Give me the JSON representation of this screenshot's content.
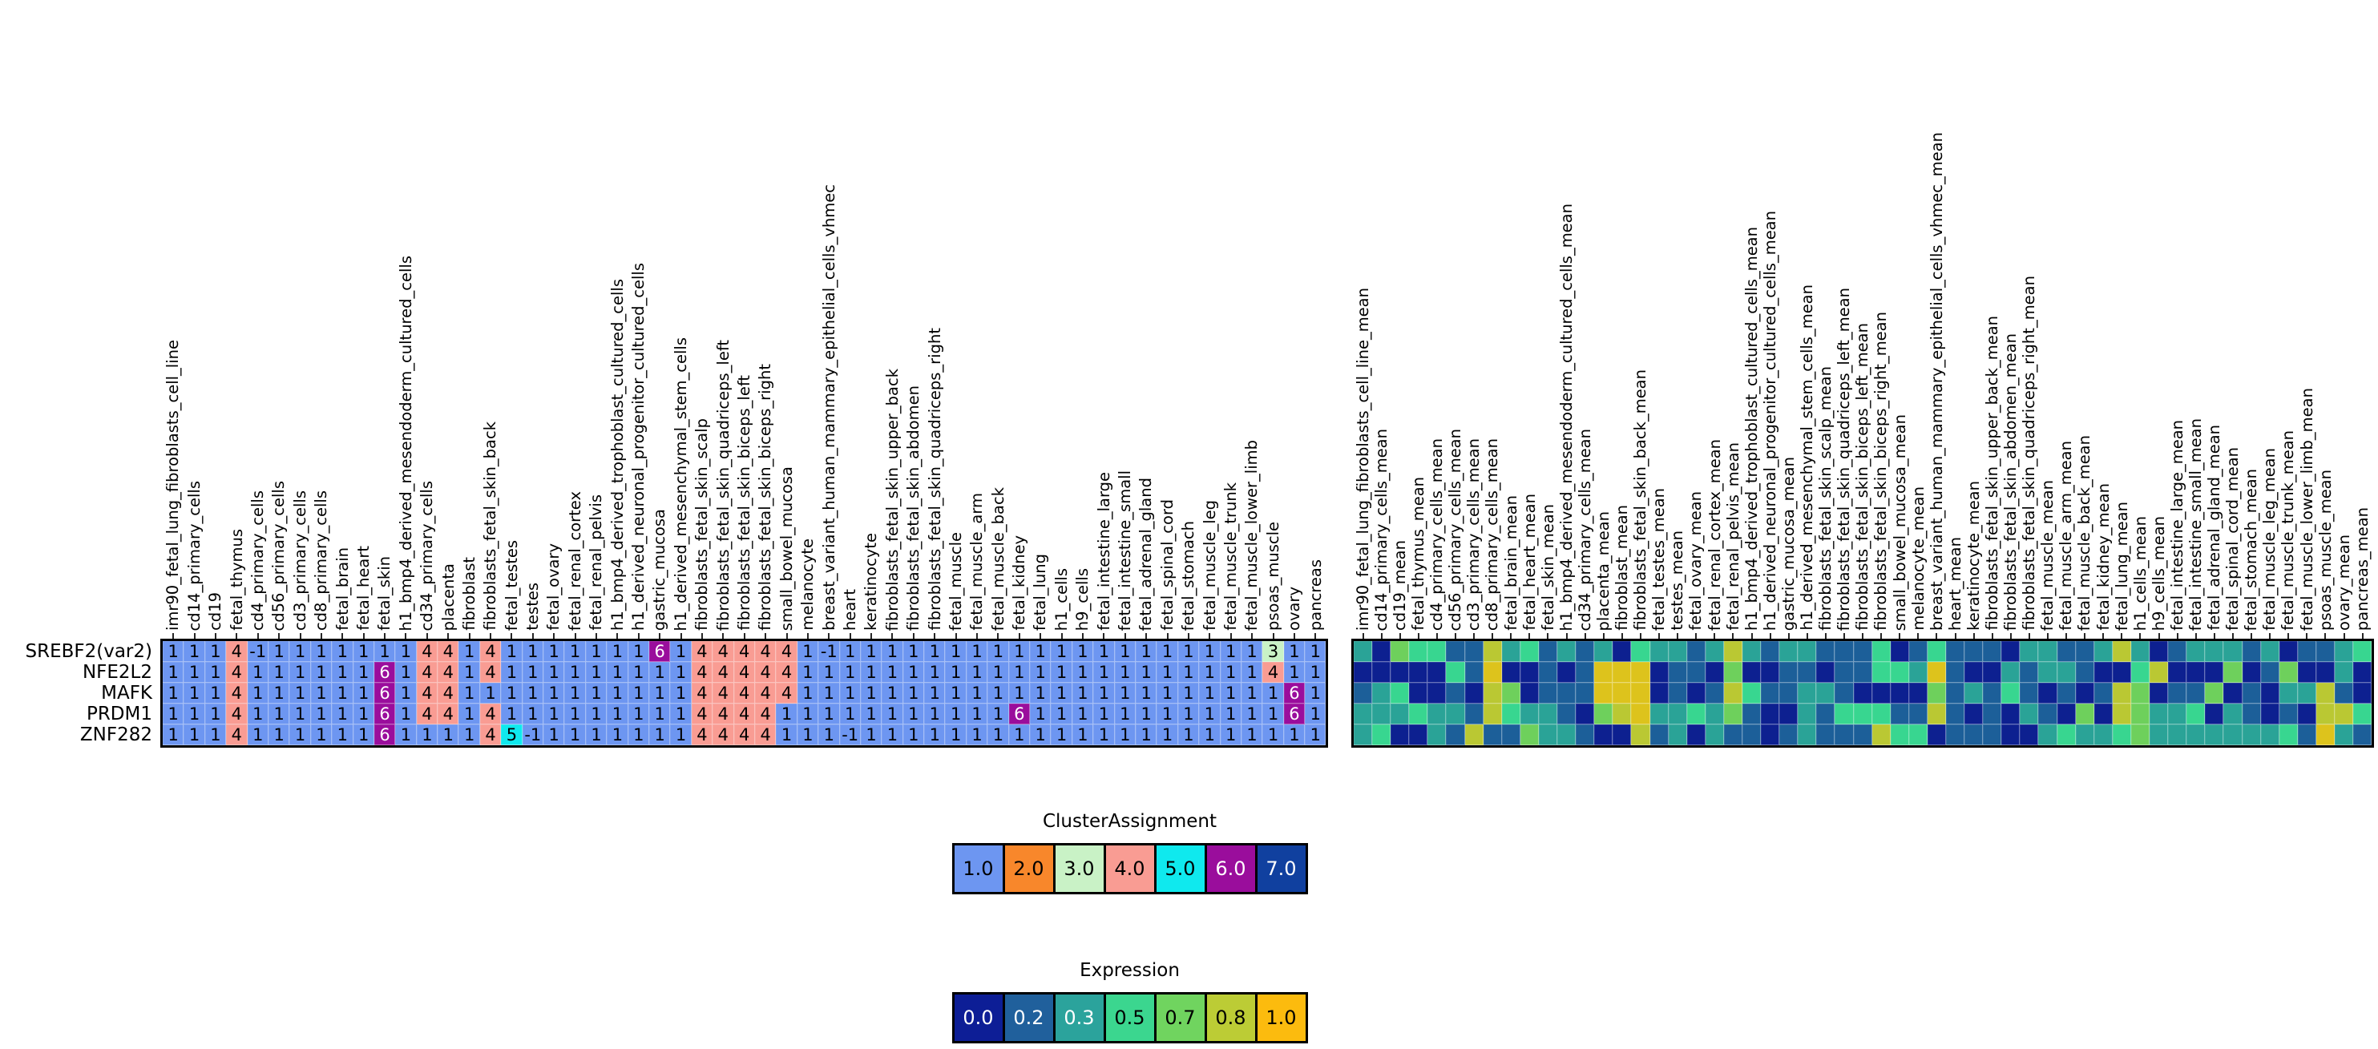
{
  "figure_title": "",
  "rows": [
    "SREBF2(var2)",
    "NFE2L2",
    "MAFK",
    "PRDM1",
    "ZNF282"
  ],
  "cluster_palette": {
    "-1": "#6d96f1",
    "1": "#6d96f1",
    "2": "#f8872b",
    "3": "#c9f2c6",
    "4": "#f99c93",
    "5": "#0fe9ee",
    "6": "#9a0d9c",
    "7": "#10409f"
  },
  "cluster_white_text_values": [
    6,
    7
  ],
  "expression_palette": {
    "0": "#0d2090",
    "0.2": "#1c5f99",
    "0.3": "#2aa397",
    "0.5": "#38d690",
    "0.7": "#6ed05c",
    "0.8": "#bac833",
    "1": "#ddc31c"
  },
  "chart_data": [
    {
      "type": "heatmap",
      "name": "ClusterAssignment",
      "show_values": true,
      "rows": [
        "SREBF2(var2)",
        "NFE2L2",
        "MAFK",
        "PRDM1",
        "ZNF282"
      ],
      "columns": [
        "imr90_fetal_lung_fibroblasts_cell_line",
        "cd14_primary_cells",
        "cd19",
        "fetal_thymus",
        "cd4_primary_cells",
        "cd56_primary_cells",
        "cd3_primary_cells",
        "cd8_primary_cells",
        "fetal_brain",
        "fetal_heart",
        "fetal_skin",
        "h1_bmp4_derived_mesendoderm_cultured_cells",
        "cd34_primary_cells",
        "placenta",
        "fibroblast",
        "fibroblasts_fetal_skin_back",
        "fetal_testes",
        "testes",
        "fetal_ovary",
        "fetal_renal_cortex",
        "fetal_renal_pelvis",
        "h1_bmp4_derived_trophoblast_cultured_cells",
        "h1_derived_neuronal_progenitor_cultured_cells",
        "gastric_mucosa",
        "h1_derived_mesenchymal_stem_cells",
        "fibroblasts_fetal_skin_scalp",
        "fibroblasts_fetal_skin_quadriceps_left",
        "fibroblasts_fetal_skin_biceps_left",
        "fibroblasts_fetal_skin_biceps_right",
        "small_bowel_mucosa",
        "melanocyte",
        "breast_variant_human_mammary_epithelial_cells_vhmec",
        "heart",
        "keratinocyte",
        "fibroblasts_fetal_skin_upper_back",
        "fibroblasts_fetal_skin_abdomen",
        "fibroblasts_fetal_skin_quadriceps_right",
        "fetal_muscle",
        "fetal_muscle_arm",
        "fetal_muscle_back",
        "fetal_kidney",
        "fetal_lung",
        "h1_cells",
        "h9_cells",
        "fetal_intestine_large",
        "fetal_intestine_small",
        "fetal_adrenal_gland",
        "fetal_spinal_cord",
        "fetal_stomach",
        "fetal_muscle_leg",
        "fetal_muscle_trunk",
        "fetal_muscle_lower_limb",
        "psoas_muscle",
        "ovary",
        "pancreas"
      ],
      "values": [
        [
          1,
          1,
          1,
          4,
          -1,
          1,
          1,
          1,
          1,
          1,
          1,
          1,
          4,
          4,
          1,
          4,
          1,
          1,
          1,
          1,
          1,
          1,
          1,
          6,
          1,
          4,
          4,
          4,
          4,
          4,
          1,
          -1,
          1,
          1,
          1,
          1,
          1,
          1,
          1,
          1,
          1,
          1,
          1,
          1,
          1,
          1,
          1,
          1,
          1,
          1,
          1,
          1,
          3,
          1,
          1
        ],
        [
          1,
          1,
          1,
          4,
          1,
          1,
          1,
          1,
          1,
          1,
          6,
          1,
          4,
          4,
          1,
          4,
          1,
          1,
          1,
          1,
          1,
          1,
          1,
          1,
          1,
          4,
          4,
          4,
          4,
          4,
          1,
          1,
          1,
          1,
          1,
          1,
          1,
          1,
          1,
          1,
          1,
          1,
          1,
          1,
          1,
          1,
          1,
          1,
          1,
          1,
          1,
          1,
          4,
          1,
          1
        ],
        [
          1,
          1,
          1,
          4,
          1,
          1,
          1,
          1,
          1,
          1,
          6,
          1,
          4,
          4,
          1,
          1,
          1,
          1,
          1,
          1,
          1,
          1,
          1,
          1,
          1,
          4,
          4,
          4,
          4,
          4,
          1,
          1,
          1,
          1,
          1,
          1,
          1,
          1,
          1,
          1,
          1,
          1,
          1,
          1,
          1,
          1,
          1,
          1,
          1,
          1,
          1,
          1,
          1,
          6,
          1
        ],
        [
          1,
          1,
          1,
          4,
          1,
          1,
          1,
          1,
          1,
          1,
          6,
          1,
          4,
          4,
          1,
          4,
          1,
          1,
          1,
          1,
          1,
          1,
          1,
          1,
          1,
          4,
          4,
          4,
          4,
          1,
          1,
          1,
          1,
          1,
          1,
          1,
          1,
          1,
          1,
          1,
          6,
          1,
          1,
          1,
          1,
          1,
          1,
          1,
          1,
          1,
          1,
          1,
          1,
          6,
          1
        ],
        [
          1,
          1,
          1,
          4,
          1,
          1,
          1,
          1,
          1,
          1,
          6,
          1,
          1,
          1,
          1,
          4,
          5,
          -1,
          1,
          1,
          1,
          1,
          1,
          1,
          1,
          4,
          4,
          4,
          4,
          1,
          1,
          1,
          -1,
          1,
          1,
          1,
          1,
          1,
          1,
          1,
          1,
          1,
          1,
          1,
          1,
          1,
          1,
          1,
          1,
          1,
          1,
          1,
          1,
          1,
          1
        ]
      ]
    },
    {
      "type": "heatmap",
      "name": "Expression",
      "show_values": false,
      "rows": [
        "SREBF2(var2)",
        "NFE2L2",
        "MAFK",
        "PRDM1",
        "ZNF282"
      ],
      "columns": [
        "imr90_fetal_lung_fibroblasts_cell_line_mean",
        "cd14_primary_cells_mean",
        "cd19_mean",
        "fetal_thymus_mean",
        "cd4_primary_cells_mean",
        "cd56_primary_cells_mean",
        "cd3_primary_cells_mean",
        "cd8_primary_cells_mean",
        "fetal_brain_mean",
        "fetal_heart_mean",
        "fetal_skin_mean",
        "h1_bmp4_derived_mesendoderm_cultured_cells_mean",
        "cd34_primary_cells_mean",
        "placenta_mean",
        "fibroblast_mean",
        "fibroblasts_fetal_skin_back_mean",
        "fetal_testes_mean",
        "testes_mean",
        "fetal_ovary_mean",
        "fetal_renal_cortex_mean",
        "fetal_renal_pelvis_mean",
        "h1_bmp4_derived_trophoblast_cultured_cells_mean",
        "h1_derived_neuronal_progenitor_cultured_cells_mean",
        "gastric_mucosa_mean",
        "h1_derived_mesenchymal_stem_cells_mean",
        "fibroblasts_fetal_skin_scalp_mean",
        "fibroblasts_fetal_skin_quadriceps_left_mean",
        "fibroblasts_fetal_skin_biceps_left_mean",
        "fibroblasts_fetal_skin_biceps_right_mean",
        "small_bowel_mucosa_mean",
        "melanocyte_mean",
        "breast_variant_human_mammary_epithelial_cells_vhmec_mean",
        "heart_mean",
        "keratinocyte_mean",
        "fibroblasts_fetal_skin_upper_back_mean",
        "fibroblasts_fetal_skin_abdomen_mean",
        "fibroblasts_fetal_skin_quadriceps_right_mean",
        "fetal_muscle_mean",
        "fetal_muscle_arm_mean",
        "fetal_muscle_back_mean",
        "fetal_kidney_mean",
        "fetal_lung_mean",
        "h1_cells_mean",
        "h9_cells_mean",
        "fetal_intestine_large_mean",
        "fetal_intestine_small_mean",
        "fetal_adrenal_gland_mean",
        "fetal_spinal_cord_mean",
        "fetal_stomach_mean",
        "fetal_muscle_leg_mean",
        "fetal_muscle_trunk_mean",
        "fetal_muscle_lower_limb_mean",
        "psoas_muscle_mean",
        "ovary_mean",
        "pancreas_mean"
      ],
      "values": [
        [
          0.3,
          0,
          0.7,
          0.5,
          0.5,
          0.2,
          0.2,
          0.8,
          0.3,
          0.5,
          0.2,
          0.3,
          0.2,
          0.3,
          0,
          0.5,
          0.3,
          0.3,
          0.2,
          0.3,
          0.8,
          0.3,
          0.2,
          0.3,
          0.3,
          0.2,
          0.2,
          0.2,
          0.5,
          0,
          0.2,
          0.5,
          0.2,
          0.2,
          0.2,
          0,
          0.3,
          0.3,
          0.2,
          0.2,
          0.3,
          0.8,
          0.3,
          0,
          0.2,
          0.3,
          0.3,
          0.3,
          0.2,
          0.3,
          0,
          0.2,
          0.2,
          0.3,
          0.5
        ],
        [
          0,
          0,
          0,
          0,
          0,
          0.5,
          0.2,
          1,
          0,
          0,
          0.2,
          0,
          0.2,
          1,
          1,
          1,
          0,
          0.2,
          0.2,
          0,
          0.7,
          0,
          0,
          0.2,
          0.2,
          0,
          0.2,
          0.2,
          0.5,
          0.5,
          0.3,
          1,
          0.2,
          0,
          0,
          0.3,
          0.2,
          0.3,
          0.3,
          0.2,
          0,
          0,
          0.5,
          0.8,
          0,
          0,
          0,
          0.7,
          0,
          0.2,
          0.7,
          0,
          0,
          0.3,
          0
        ],
        [
          0.2,
          0.3,
          0.5,
          0,
          0,
          0.2,
          0,
          0.8,
          0.7,
          0,
          0.2,
          0.2,
          0.2,
          1,
          1,
          1,
          0,
          0.2,
          0,
          0.2,
          0.8,
          0.5,
          0.2,
          0.2,
          0.3,
          0.3,
          0.2,
          0,
          0,
          0,
          0,
          0.7,
          0.2,
          0.3,
          0.2,
          0.5,
          0.2,
          0,
          0.2,
          0,
          0.2,
          0.8,
          0.7,
          0,
          0.2,
          0.2,
          0.7,
          0,
          0.2,
          0,
          0.3,
          0.3,
          0.8,
          0.2,
          0
        ],
        [
          0.3,
          0.3,
          0.3,
          0.5,
          0.3,
          0.3,
          0.2,
          0.8,
          0.5,
          0.3,
          0.3,
          0.2,
          0,
          0.7,
          0.8,
          1,
          0.3,
          0.3,
          0.5,
          0.3,
          0.7,
          0.2,
          0,
          0,
          0.3,
          0.2,
          0.5,
          0.5,
          0.5,
          0.2,
          0.2,
          0.8,
          0.2,
          0,
          0.2,
          0,
          0.3,
          0.2,
          0,
          0.7,
          0,
          0.8,
          0.7,
          0.3,
          0.3,
          0.5,
          0,
          0.3,
          0.2,
          0,
          0.2,
          0,
          0.8,
          0.8,
          0.5
        ],
        [
          0.3,
          0.5,
          0,
          0,
          0.3,
          0.2,
          0.8,
          0.2,
          0.2,
          0.7,
          0.3,
          0.3,
          0.2,
          0,
          0,
          0.8,
          0.2,
          0.3,
          0,
          0.3,
          0.2,
          0.2,
          0,
          0.2,
          0.3,
          0.2,
          0.2,
          0.2,
          0.8,
          0.5,
          0.5,
          0,
          0.2,
          0.2,
          0.2,
          0,
          0,
          0.3,
          0.5,
          0.3,
          0.3,
          0.5,
          0.7,
          0.3,
          0.3,
          0.3,
          0.3,
          0.3,
          0.3,
          0.3,
          0.5,
          0.2,
          1,
          0.3,
          0.2
        ]
      ]
    }
  ],
  "legends": [
    {
      "title": "ClusterAssignment",
      "entries": [
        {
          "label": "1.0",
          "color": "#6d96f1",
          "text_color": "#000000"
        },
        {
          "label": "2.0",
          "color": "#f8872b",
          "text_color": "#000000"
        },
        {
          "label": "3.0",
          "color": "#c9f2c6",
          "text_color": "#000000"
        },
        {
          "label": "4.0",
          "color": "#f99c93",
          "text_color": "#000000"
        },
        {
          "label": "5.0",
          "color": "#0fe9ee",
          "text_color": "#000000"
        },
        {
          "label": "6.0",
          "color": "#9a0d9c",
          "text_color": "#ffffff"
        },
        {
          "label": "7.0",
          "color": "#10409f",
          "text_color": "#ffffff"
        }
      ]
    },
    {
      "title": "Expression",
      "entries": [
        {
          "label": "0.0",
          "color": "#0d1e96",
          "text_color": "#ffffff"
        },
        {
          "label": "0.2",
          "color": "#20609c",
          "text_color": "#ffffff"
        },
        {
          "label": "0.3",
          "color": "#2ba39c",
          "text_color": "#ffffff"
        },
        {
          "label": "0.5",
          "color": "#3bd68f",
          "text_color": "#000000"
        },
        {
          "label": "0.7",
          "color": "#70d45f",
          "text_color": "#000000"
        },
        {
          "label": "0.8",
          "color": "#bccc35",
          "text_color": "#000000"
        },
        {
          "label": "1.0",
          "color": "#fcbb0e",
          "text_color": "#000000"
        }
      ]
    }
  ]
}
